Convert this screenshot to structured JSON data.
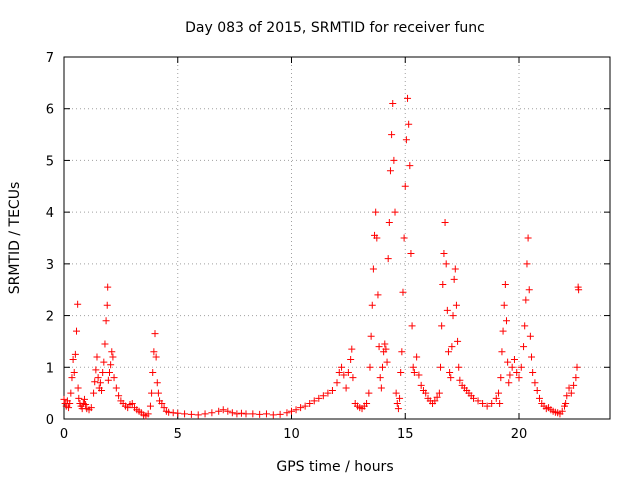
{
  "chart_data": {
    "type": "scatter",
    "title": "Day 083 of 2015, SRMTID for receiver func",
    "xlabel": "GPS time / hours",
    "ylabel": "SRMTID / TECUs",
    "xlim": [
      0,
      24
    ],
    "ylim": [
      0,
      7
    ],
    "x_ticks": [
      0,
      5,
      10,
      15,
      20
    ],
    "y_ticks": [
      0,
      1,
      2,
      3,
      4,
      5,
      6,
      7
    ],
    "grid": true,
    "marker": "+",
    "marker_color": "#ff0000",
    "series": [
      {
        "name": "SRMTID",
        "points": [
          [
            0.0,
            0.38
          ],
          [
            0.05,
            0.3
          ],
          [
            0.1,
            0.25
          ],
          [
            0.15,
            0.35
          ],
          [
            0.2,
            0.22
          ],
          [
            0.25,
            0.3
          ],
          [
            0.3,
            0.5
          ],
          [
            0.35,
            0.8
          ],
          [
            0.4,
            1.15
          ],
          [
            0.45,
            0.9
          ],
          [
            0.5,
            1.25
          ],
          [
            0.55,
            1.7
          ],
          [
            0.6,
            2.22
          ],
          [
            0.62,
            0.6
          ],
          [
            0.65,
            0.4
          ],
          [
            0.7,
            0.3
          ],
          [
            0.75,
            0.25
          ],
          [
            0.8,
            0.2
          ],
          [
            0.85,
            0.3
          ],
          [
            0.9,
            0.38
          ],
          [
            0.95,
            0.28
          ],
          [
            1.0,
            0.2
          ],
          [
            1.1,
            0.18
          ],
          [
            1.2,
            0.22
          ],
          [
            1.3,
            0.5
          ],
          [
            1.35,
            0.72
          ],
          [
            1.4,
            0.95
          ],
          [
            1.45,
            1.2
          ],
          [
            1.5,
            0.8
          ],
          [
            1.55,
            0.6
          ],
          [
            1.6,
            0.7
          ],
          [
            1.65,
            0.55
          ],
          [
            1.7,
            0.9
          ],
          [
            1.75,
            1.1
          ],
          [
            1.8,
            1.45
          ],
          [
            1.85,
            1.9
          ],
          [
            1.9,
            2.2
          ],
          [
            1.92,
            2.55
          ],
          [
            1.95,
            0.75
          ],
          [
            2.0,
            0.9
          ],
          [
            2.05,
            1.05
          ],
          [
            2.1,
            1.3
          ],
          [
            2.15,
            1.2
          ],
          [
            2.2,
            0.8
          ],
          [
            2.3,
            0.6
          ],
          [
            2.4,
            0.45
          ],
          [
            2.5,
            0.35
          ],
          [
            2.6,
            0.3
          ],
          [
            2.7,
            0.25
          ],
          [
            2.8,
            0.22
          ],
          [
            2.9,
            0.28
          ],
          [
            3.0,
            0.3
          ],
          [
            3.1,
            0.22
          ],
          [
            3.2,
            0.18
          ],
          [
            3.3,
            0.15
          ],
          [
            3.4,
            0.12
          ],
          [
            3.5,
            0.08
          ],
          [
            3.6,
            0.06
          ],
          [
            3.7,
            0.1
          ],
          [
            3.8,
            0.25
          ],
          [
            3.85,
            0.5
          ],
          [
            3.9,
            0.9
          ],
          [
            3.95,
            1.3
          ],
          [
            4.0,
            1.65
          ],
          [
            4.05,
            1.2
          ],
          [
            4.1,
            0.7
          ],
          [
            4.15,
            0.5
          ],
          [
            4.2,
            0.35
          ],
          [
            4.3,
            0.3
          ],
          [
            4.4,
            0.22
          ],
          [
            4.5,
            0.15
          ],
          [
            4.6,
            0.13
          ],
          [
            4.8,
            0.12
          ],
          [
            5.0,
            0.11
          ],
          [
            5.3,
            0.1
          ],
          [
            5.6,
            0.09
          ],
          [
            5.9,
            0.08
          ],
          [
            6.2,
            0.1
          ],
          [
            6.5,
            0.12
          ],
          [
            6.8,
            0.15
          ],
          [
            7.0,
            0.18
          ],
          [
            7.2,
            0.15
          ],
          [
            7.4,
            0.12
          ],
          [
            7.6,
            0.1
          ],
          [
            7.8,
            0.11
          ],
          [
            8.0,
            0.1
          ],
          [
            8.3,
            0.1
          ],
          [
            8.6,
            0.09
          ],
          [
            8.9,
            0.1
          ],
          [
            9.2,
            0.08
          ],
          [
            9.5,
            0.09
          ],
          [
            9.8,
            0.12
          ],
          [
            10.0,
            0.15
          ],
          [
            10.2,
            0.18
          ],
          [
            10.4,
            0.22
          ],
          [
            10.6,
            0.25
          ],
          [
            10.8,
            0.3
          ],
          [
            11.0,
            0.35
          ],
          [
            11.2,
            0.4
          ],
          [
            11.4,
            0.45
          ],
          [
            11.6,
            0.5
          ],
          [
            11.8,
            0.55
          ],
          [
            12.0,
            0.7
          ],
          [
            12.1,
            0.9
          ],
          [
            12.2,
            1.0
          ],
          [
            12.3,
            0.85
          ],
          [
            12.4,
            0.6
          ],
          [
            12.5,
            0.9
          ],
          [
            12.6,
            1.15
          ],
          [
            12.65,
            1.35
          ],
          [
            12.7,
            0.8
          ],
          [
            12.8,
            0.3
          ],
          [
            12.9,
            0.25
          ],
          [
            13.0,
            0.22
          ],
          [
            13.1,
            0.2
          ],
          [
            13.2,
            0.25
          ],
          [
            13.3,
            0.3
          ],
          [
            13.4,
            0.5
          ],
          [
            13.45,
            1.0
          ],
          [
            13.5,
            1.6
          ],
          [
            13.55,
            2.2
          ],
          [
            13.6,
            2.9
          ],
          [
            13.65,
            3.55
          ],
          [
            13.7,
            4.0
          ],
          [
            13.75,
            3.5
          ],
          [
            13.8,
            2.4
          ],
          [
            13.85,
            1.4
          ],
          [
            13.9,
            0.8
          ],
          [
            13.95,
            0.6
          ],
          [
            14.0,
            1.0
          ],
          [
            14.05,
            1.3
          ],
          [
            14.1,
            1.45
          ],
          [
            14.15,
            1.35
          ],
          [
            14.2,
            1.1
          ],
          [
            14.25,
            3.1
          ],
          [
            14.3,
            3.8
          ],
          [
            14.35,
            4.8
          ],
          [
            14.4,
            5.5
          ],
          [
            14.45,
            6.1
          ],
          [
            14.5,
            5.0
          ],
          [
            14.55,
            4.0
          ],
          [
            14.6,
            0.5
          ],
          [
            14.65,
            0.3
          ],
          [
            14.7,
            0.2
          ],
          [
            14.75,
            0.4
          ],
          [
            14.8,
            0.9
          ],
          [
            14.85,
            1.3
          ],
          [
            14.9,
            2.45
          ],
          [
            14.95,
            3.5
          ],
          [
            15.0,
            4.5
          ],
          [
            15.05,
            5.4
          ],
          [
            15.1,
            6.2
          ],
          [
            15.15,
            5.7
          ],
          [
            15.2,
            4.9
          ],
          [
            15.25,
            3.2
          ],
          [
            15.3,
            1.8
          ],
          [
            15.35,
            1.0
          ],
          [
            15.4,
            0.9
          ],
          [
            15.5,
            1.2
          ],
          [
            15.6,
            0.85
          ],
          [
            15.7,
            0.65
          ],
          [
            15.8,
            0.55
          ],
          [
            15.9,
            0.5
          ],
          [
            16.0,
            0.4
          ],
          [
            16.1,
            0.35
          ],
          [
            16.2,
            0.3
          ],
          [
            16.3,
            0.35
          ],
          [
            16.4,
            0.42
          ],
          [
            16.5,
            0.5
          ],
          [
            16.55,
            1.0
          ],
          [
            16.6,
            1.8
          ],
          [
            16.65,
            2.6
          ],
          [
            16.7,
            3.2
          ],
          [
            16.75,
            3.8
          ],
          [
            16.8,
            3.0
          ],
          [
            16.85,
            2.1
          ],
          [
            16.9,
            1.3
          ],
          [
            16.95,
            0.9
          ],
          [
            17.0,
            0.8
          ],
          [
            17.05,
            1.4
          ],
          [
            17.1,
            2.0
          ],
          [
            17.15,
            2.7
          ],
          [
            17.2,
            2.9
          ],
          [
            17.25,
            2.2
          ],
          [
            17.3,
            1.5
          ],
          [
            17.35,
            1.0
          ],
          [
            17.4,
            0.75
          ],
          [
            17.5,
            0.65
          ],
          [
            17.6,
            0.6
          ],
          [
            17.7,
            0.55
          ],
          [
            17.8,
            0.5
          ],
          [
            17.9,
            0.45
          ],
          [
            18.0,
            0.4
          ],
          [
            18.2,
            0.35
          ],
          [
            18.4,
            0.3
          ],
          [
            18.6,
            0.25
          ],
          [
            18.8,
            0.3
          ],
          [
            19.0,
            0.4
          ],
          [
            19.1,
            0.5
          ],
          [
            19.15,
            0.3
          ],
          [
            19.2,
            0.8
          ],
          [
            19.25,
            1.3
          ],
          [
            19.3,
            1.7
          ],
          [
            19.35,
            2.2
          ],
          [
            19.4,
            2.6
          ],
          [
            19.45,
            1.9
          ],
          [
            19.5,
            1.1
          ],
          [
            19.55,
            0.7
          ],
          [
            19.6,
            0.85
          ],
          [
            19.7,
            1.0
          ],
          [
            19.8,
            1.15
          ],
          [
            19.9,
            0.9
          ],
          [
            20.0,
            0.8
          ],
          [
            20.1,
            1.0
          ],
          [
            20.2,
            1.4
          ],
          [
            20.25,
            1.8
          ],
          [
            20.3,
            2.3
          ],
          [
            20.35,
            3.0
          ],
          [
            20.4,
            3.5
          ],
          [
            20.45,
            2.5
          ],
          [
            20.5,
            1.6
          ],
          [
            20.55,
            1.2
          ],
          [
            20.6,
            0.9
          ],
          [
            20.7,
            0.7
          ],
          [
            20.8,
            0.55
          ],
          [
            20.9,
            0.4
          ],
          [
            21.0,
            0.3
          ],
          [
            21.1,
            0.25
          ],
          [
            21.2,
            0.2
          ],
          [
            21.3,
            0.22
          ],
          [
            21.4,
            0.18
          ],
          [
            21.5,
            0.15
          ],
          [
            21.6,
            0.13
          ],
          [
            21.7,
            0.12
          ],
          [
            21.8,
            0.1
          ],
          [
            21.9,
            0.15
          ],
          [
            22.0,
            0.25
          ],
          [
            22.05,
            0.3
          ],
          [
            22.1,
            0.45
          ],
          [
            22.2,
            0.6
          ],
          [
            22.3,
            0.5
          ],
          [
            22.4,
            0.65
          ],
          [
            22.5,
            0.8
          ],
          [
            22.55,
            1.0
          ],
          [
            22.6,
            2.55
          ],
          [
            22.62,
            2.5
          ]
        ]
      }
    ]
  }
}
